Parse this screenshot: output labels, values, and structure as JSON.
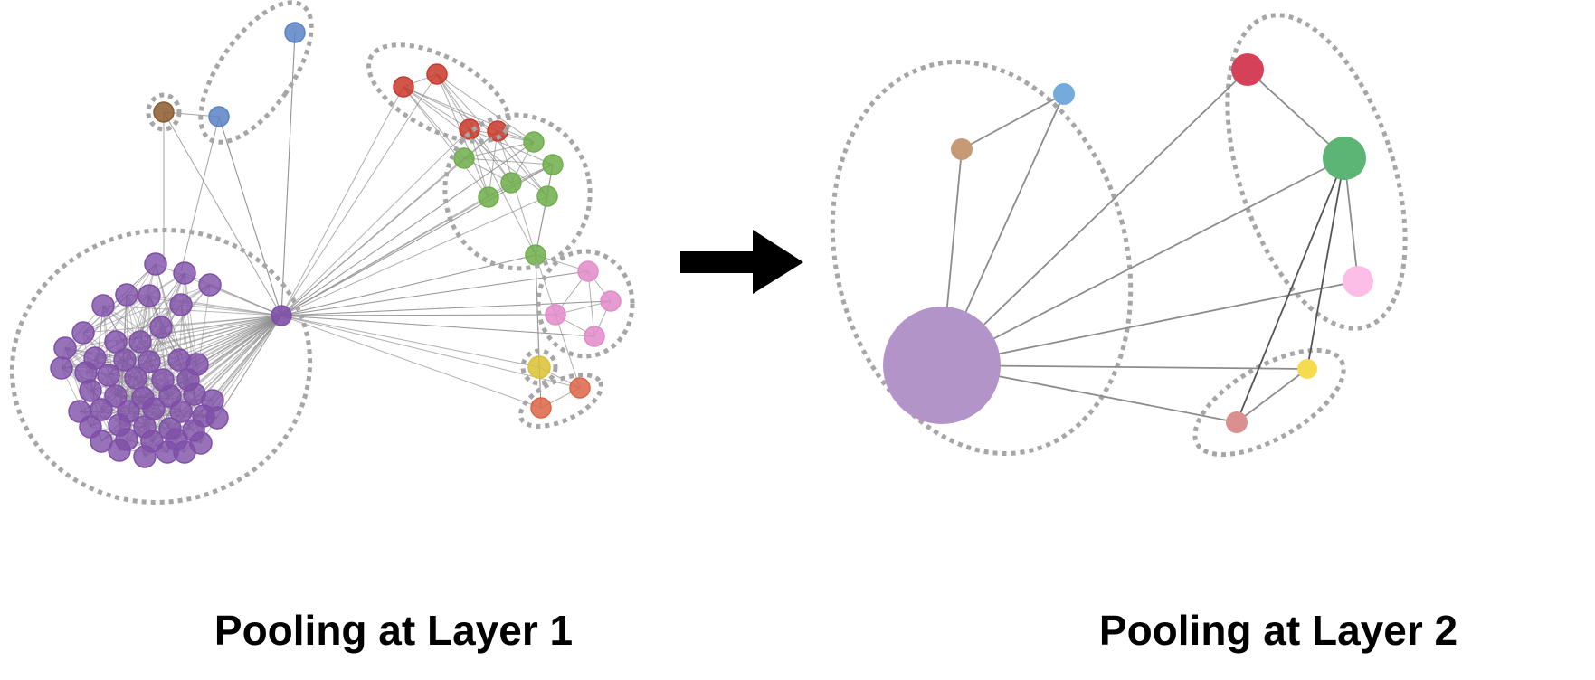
{
  "captions": {
    "layer1": "Pooling at Layer 1",
    "layer2": "Pooling at Layer 2"
  },
  "colors": {
    "edge": "#8c8c8c",
    "cluster_outline": "#a6a6a6",
    "arrow": "#000000",
    "purple": "#7e4fa8",
    "blue": "#5b82c4",
    "brown": "#8b5a2b",
    "red": "#c9382a",
    "green": "#6fae4a",
    "pink": "#e28bc8",
    "yellow": "#d9c233",
    "orange": "#dc6446",
    "pooled_purple": "#b394c9",
    "pooled_blue": "#75aadd",
    "pooled_brown": "#c79a76",
    "pooled_red": "#d6415a",
    "pooled_green": "#5cb574",
    "pooled_pink": "#fcbde7",
    "pooled_yellow": "#f7db4f",
    "pooled_salmon": "#d9908f"
  },
  "diagram": {
    "layer1_clusters": [
      "purple",
      "blue",
      "brown",
      "red",
      "green",
      "pink",
      "yellow",
      "orange"
    ],
    "layer2_clusters": 3,
    "arrow_icon": "right-arrow-icon"
  }
}
